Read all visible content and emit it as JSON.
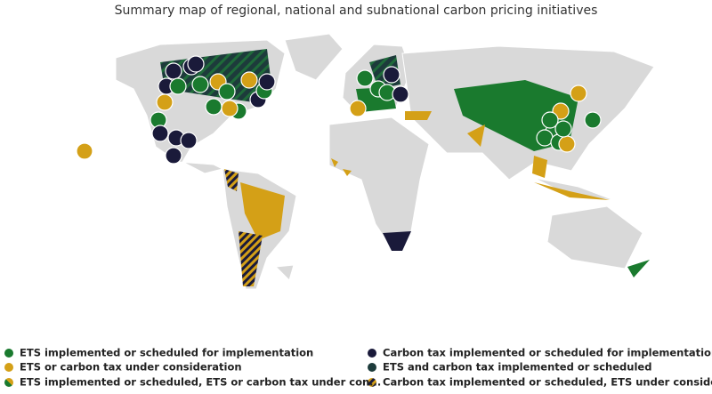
{
  "title": "Summary map of regional, national and subnational carbon pricing initiatives",
  "legend": {
    "items": [
      {
        "label": "ETS implemented or scheduled for implementation"
      },
      {
        "label": "ETS or carbon tax under consideration"
      },
      {
        "label": "ETS implemented or scheduled, ETS or carbon tax under con..."
      },
      {
        "label": "Carbon tax implemented or scheduled for implementation"
      },
      {
        "label": "ETS and carbon tax implemented or scheduled"
      },
      {
        "label": "Carbon tax implemented or scheduled, ETS under considera..."
      }
    ]
  }
}
